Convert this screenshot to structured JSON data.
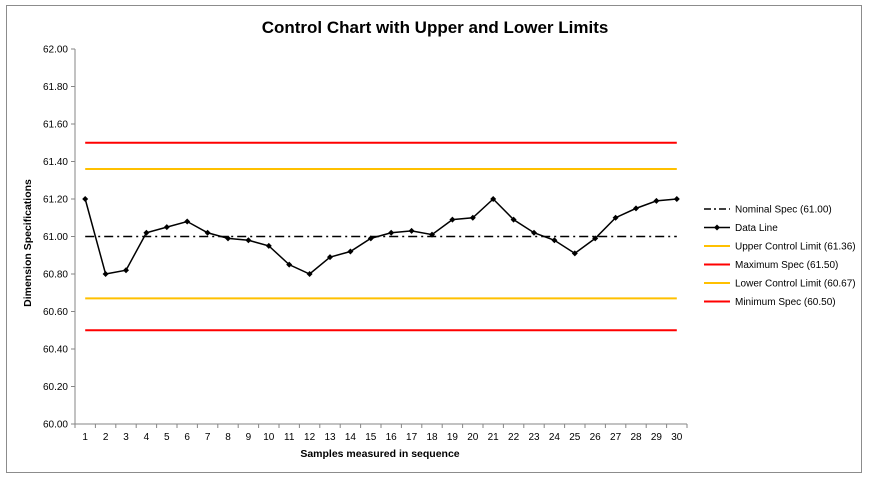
{
  "chart_data": {
    "type": "line",
    "title": "Control Chart with Upper and Lower Limits",
    "xlabel": "Samples measured in sequence",
    "ylabel": "Dimension Specifications",
    "ylim": [
      60.0,
      62.0
    ],
    "y_ticks": [
      "60.00",
      "60.20",
      "60.40",
      "60.60",
      "60.80",
      "61.00",
      "61.20",
      "61.40",
      "61.60",
      "61.80",
      "62.00"
    ],
    "x": [
      1,
      2,
      3,
      4,
      5,
      6,
      7,
      8,
      9,
      10,
      11,
      12,
      13,
      14,
      15,
      16,
      17,
      18,
      19,
      20,
      21,
      22,
      23,
      24,
      25,
      26,
      27,
      28,
      29,
      30
    ],
    "data_series": {
      "name": "Data Line",
      "color": "#000000",
      "values": [
        61.2,
        60.8,
        60.82,
        61.02,
        61.05,
        61.08,
        61.02,
        60.99,
        60.98,
        60.95,
        60.85,
        60.8,
        60.89,
        60.92,
        60.99,
        61.02,
        61.03,
        61.01,
        61.09,
        61.1,
        61.2,
        61.09,
        61.02,
        60.98,
        60.91,
        60.99,
        61.1,
        61.15,
        61.19,
        61.2
      ]
    },
    "limit_lines": [
      {
        "name": "Nominal Spec (61.00)",
        "value": 61.0,
        "color": "#000000",
        "style": "dashdot"
      },
      {
        "name": "Upper Control Limit (61.36)",
        "value": 61.36,
        "color": "#FFC000",
        "style": "solid"
      },
      {
        "name": "Maximum Spec (61.50)",
        "value": 61.5,
        "color": "#FF0000",
        "style": "solid"
      },
      {
        "name": "Lower Control Limit (60.67)",
        "value": 60.67,
        "color": "#FFC000",
        "style": "solid"
      },
      {
        "name": "Minimum Spec (60.50)",
        "value": 60.5,
        "color": "#FF0000",
        "style": "solid"
      }
    ],
    "legend": [
      {
        "label": "Nominal Spec (61.00)",
        "color": "#000000",
        "style": "dashdot"
      },
      {
        "label": "Data Line",
        "color": "#000000",
        "style": "marker"
      },
      {
        "label": "Upper Control Limit (61.36)",
        "color": "#FFC000",
        "style": "solid"
      },
      {
        "label": "Maximum Spec (61.50)",
        "color": "#FF0000",
        "style": "solid"
      },
      {
        "label": "Lower Control Limit (60.67)",
        "color": "#FFC000",
        "style": "solid"
      },
      {
        "label": "Minimum Spec (60.50)",
        "color": "#FF0000",
        "style": "solid"
      }
    ],
    "legend_position": "right",
    "grid": false
  }
}
